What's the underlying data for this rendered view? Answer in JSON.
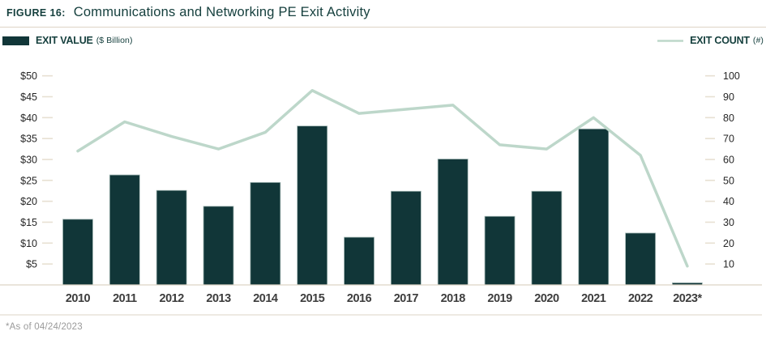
{
  "figure": {
    "label": "FIGURE 16:",
    "title": "Communications and Networking PE Exit Activity",
    "footnote": "*As of 04/24/2023"
  },
  "legend": {
    "value": {
      "label": "EXIT VALUE",
      "unit": "($ Billion)"
    },
    "count": {
      "label": "EXIT COUNT",
      "unit": "(#)"
    }
  },
  "colors": {
    "bar": "#113638",
    "bar_edge": "#a3b8b5",
    "line": "#bdd7ca",
    "title_text": "#16403e",
    "axis_text": "#262626",
    "year_text": "#3d3d3d",
    "tick": "#e7e0d2",
    "rule": "#ddd4c5",
    "footnote_text": "#9a9a9a"
  },
  "chart_data": {
    "type": "combo",
    "title": "Communications and Networking PE Exit Activity",
    "categories": [
      "2010",
      "2011",
      "2012",
      "2013",
      "2014",
      "2015",
      "2016",
      "2017",
      "2018",
      "2019",
      "2020",
      "2021",
      "2022",
      "2023*"
    ],
    "series": [
      {
        "name": "EXIT VALUE ($ Billion)",
        "type": "bar",
        "axis": "left",
        "values": [
          15.7,
          26.3,
          22.6,
          18.8,
          24.5,
          38.0,
          11.4,
          22.4,
          30.1,
          16.4,
          22.4,
          37.3,
          12.4,
          0.5
        ]
      },
      {
        "name": "EXIT COUNT (#)",
        "type": "line",
        "axis": "right",
        "values": [
          64,
          78,
          71,
          65,
          73,
          93,
          82,
          84,
          86,
          67,
          65,
          80,
          62,
          9
        ]
      }
    ],
    "left_axis": {
      "label": "EXIT VALUE ($ Billion)",
      "tick_labels": [
        "$5",
        "$10",
        "$15",
        "$20",
        "$25",
        "$30",
        "$35",
        "$40",
        "$45",
        "$50"
      ],
      "tick_step": 5,
      "range": [
        0,
        54.5
      ]
    },
    "right_axis": {
      "label": "EXIT COUNT (#)",
      "tick_labels": [
        "10",
        "20",
        "30",
        "40",
        "50",
        "60",
        "70",
        "80",
        "90",
        "100"
      ],
      "tick_step": 10,
      "range": [
        0,
        109
      ]
    },
    "grid": false,
    "legend_position": "top"
  }
}
